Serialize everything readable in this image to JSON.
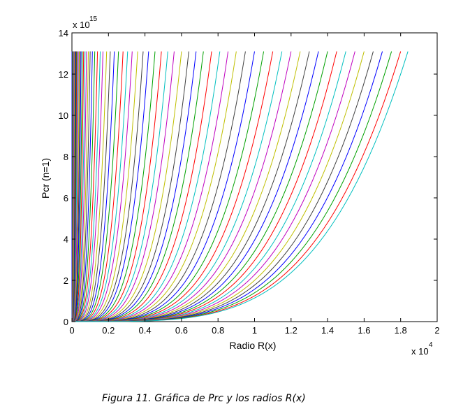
{
  "caption": "Figura 11. Gráfica de Prc y los radios R(x)",
  "chart_data": {
    "type": "line",
    "title": "",
    "xlabel": "Radio R(x)",
    "ylabel": "Pcr (n=1)",
    "x_multiplier_label": "x 10",
    "x_multiplier_exp": "4",
    "y_multiplier_label": "x 10",
    "y_multiplier_exp": "15",
    "xlim": [
      0,
      2
    ],
    "ylim": [
      0,
      14
    ],
    "xticks": [
      "0",
      "0.2",
      "0.4",
      "0.6",
      "0.8",
      "1",
      "1.2",
      "1.4",
      "1.6",
      "1.8",
      "2"
    ],
    "yticks": [
      "0",
      "2",
      "4",
      "6",
      "8",
      "10",
      "12",
      "14"
    ],
    "grid": false,
    "curve_shape": "y = y_max * (x / x_max)^4",
    "y_max": 13.1,
    "x_max_values": [
      0.0,
      0.003,
      0.006,
      0.009,
      0.012,
      0.015,
      0.018,
      0.021,
      0.024,
      0.027,
      0.03,
      0.035,
      0.04,
      0.045,
      0.05,
      0.057,
      0.064,
      0.072,
      0.08,
      0.09,
      0.1,
      0.112,
      0.125,
      0.14,
      0.155,
      0.17,
      0.19,
      0.21,
      0.232,
      0.255,
      0.28,
      0.305,
      0.33,
      0.36,
      0.39,
      0.42,
      0.455,
      0.49,
      0.525,
      0.56,
      0.6,
      0.64,
      0.68,
      0.72,
      0.765,
      0.81,
      0.855,
      0.9,
      0.95,
      1.0,
      1.05,
      1.1,
      1.15,
      1.2,
      1.25,
      1.3,
      1.35,
      1.4,
      1.45,
      1.5,
      1.55,
      1.6,
      1.65,
      1.7,
      1.75,
      1.8,
      1.84
    ],
    "series_colors": [
      "#0000ff",
      "#00a000",
      "#ff0000",
      "#00bfbf",
      "#bf00bf",
      "#bfbf00",
      "#404040"
    ]
  }
}
